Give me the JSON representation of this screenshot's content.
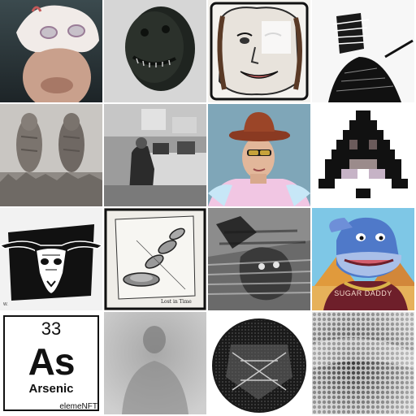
{
  "grid": {
    "columns": 4,
    "rows": 4,
    "tiles": [
      {
        "subject": "white-mask-face-icon"
      },
      {
        "subject": "dark-mask-icon"
      },
      {
        "subject": "sketch-face-icon"
      },
      {
        "subject": "scribble-figure-icon"
      },
      {
        "subject": "stone-figures-icon"
      },
      {
        "subject": "office-photo-icon"
      },
      {
        "subject": "cowboy-portrait-icon"
      },
      {
        "subject": "pixel-pyramid-icon"
      },
      {
        "subject": "bull-skull-icon"
      },
      {
        "subject": "lost-in-time-icon",
        "caption": "Lost in Time"
      },
      {
        "subject": "glitch-cat-icon"
      },
      {
        "subject": "hippo-cartoon-icon",
        "caption": "SUGAR DADDY"
      },
      {
        "subject": "element-card",
        "number": "33",
        "symbol": "As",
        "name": "Arsenic",
        "brand": "elemeNFT"
      },
      {
        "subject": "fog-silhouette-icon"
      },
      {
        "subject": "halftone-circle-icon"
      },
      {
        "subject": "halftone-texture-icon"
      }
    ]
  },
  "colors": {
    "page_background": "#ffffff",
    "hippo_blue": "#4f79c9",
    "hippo_shirt": "#6e1f2a",
    "cowboy_hat": "#8a3a22",
    "cowboy_bg": "#7fa6b8"
  }
}
